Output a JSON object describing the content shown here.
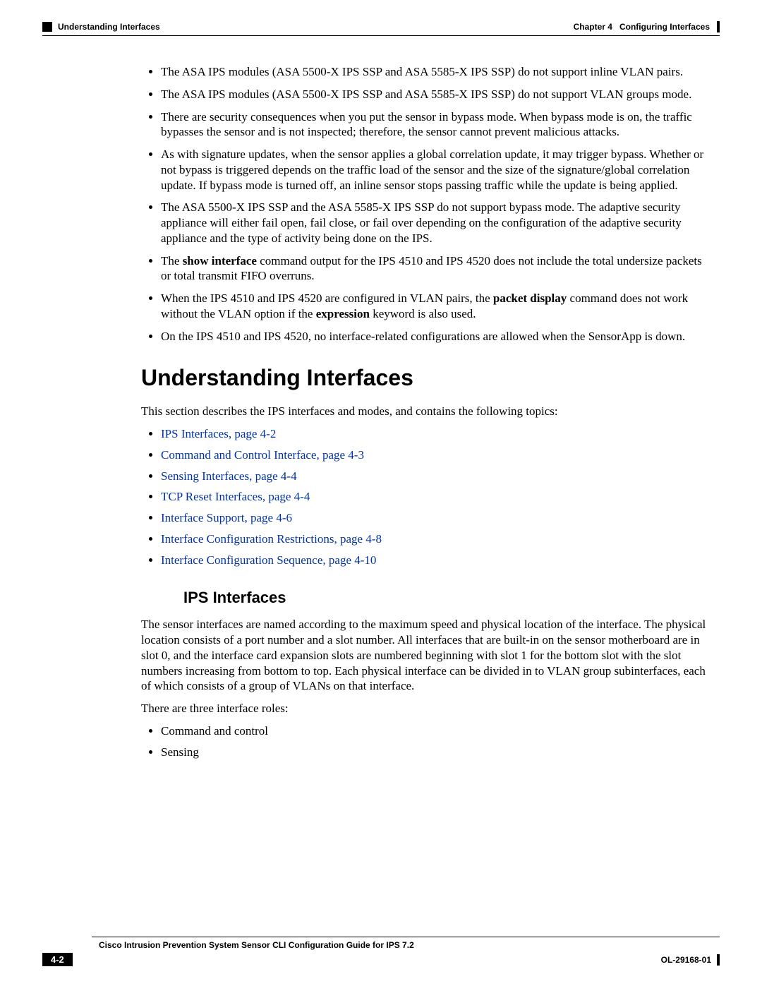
{
  "header": {
    "section_label": "Understanding Interfaces",
    "chapter_label": "Chapter 4",
    "chapter_title": "Configuring Interfaces"
  },
  "bullets_top": [
    "The ASA IPS modules (ASA 5500-X IPS SSP and ASA 5585-X IPS SSP) do not support inline VLAN pairs.",
    "The ASA IPS modules (ASA 5500-X IPS SSP and ASA 5585-X IPS SSP) do not support VLAN groups mode.",
    "There are security consequences when you put the sensor in bypass mode. When bypass mode is on, the traffic bypasses the sensor and is not inspected; therefore, the sensor cannot prevent malicious attacks.",
    "As with signature updates, when the sensor applies a global correlation update, it may trigger bypass. Whether or not bypass is triggered depends on the traffic load of the sensor and the size of the signature/global correlation update. If bypass mode is turned off, an inline sensor stops passing traffic while the update is being applied.",
    "The ASA 5500-X IPS SSP and the ASA 5585-X IPS SSP do not support bypass mode. The adaptive security appliance will either fail open, fail close, or fail over depending on the configuration of the adaptive security appliance and the type of activity being done on the IPS."
  ],
  "bullet_show_interface": {
    "prefix": "The ",
    "bold1": "show interface",
    "rest": " command output for the IPS 4510 and IPS 4520 does not include the total undersize packets or total transmit FIFO overruns."
  },
  "bullet_packet_display": {
    "prefix": "When the IPS 4510 and IPS 4520 are configured in VLAN pairs, the ",
    "bold1": "packet display",
    "mid": " command does not work without the VLAN option if the ",
    "bold2": "expression",
    "rest": " keyword is also used."
  },
  "bullet_last": "On the IPS 4510 and IPS 4520, no interface-related configurations are allowed when the SensorApp is down.",
  "section": {
    "title": "Understanding Interfaces",
    "intro": "This section describes the IPS interfaces and modes, and contains the following topics:"
  },
  "topic_links": [
    "IPS Interfaces, page 4-2",
    "Command and Control Interface, page 4-3",
    "Sensing Interfaces, page 4-4",
    "TCP Reset Interfaces, page 4-4",
    "Interface Support, page 4-6",
    "Interface Configuration Restrictions, page 4-8",
    "Interface Configuration Sequence, page 4-10"
  ],
  "subsection": {
    "title": "IPS Interfaces",
    "para1": "The sensor interfaces are named according to the maximum speed and physical location of the interface. The physical location consists of a port number and a slot number. All interfaces that are built-in on the sensor motherboard are in slot 0, and the interface card expansion slots are numbered beginning with slot 1 for the bottom slot with the slot numbers increasing from bottom to top. Each physical interface can be divided in to VLAN group subinterfaces, each of which consists of a group of VLANs on that interface.",
    "para2": "There are three interface roles:",
    "roles": [
      "Command and control",
      "Sensing"
    ]
  },
  "footer": {
    "guide_title": "Cisco Intrusion Prevention System Sensor CLI Configuration Guide for IPS 7.2",
    "page_number": "4-2",
    "doc_id": "OL-29168-01"
  },
  "colors": {
    "link": "#0033aa",
    "text": "#000000",
    "background": "#ffffff"
  }
}
